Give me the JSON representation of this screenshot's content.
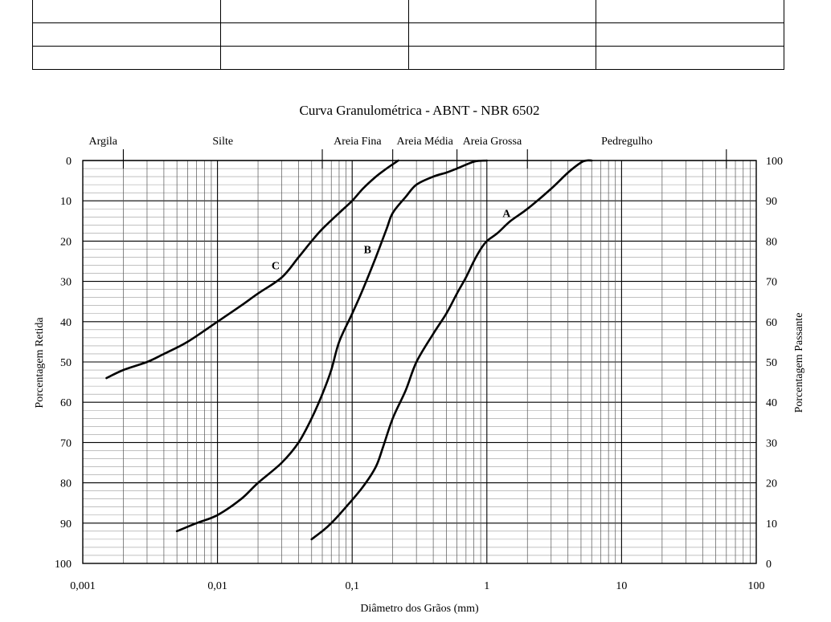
{
  "table": {
    "rows": 3,
    "cols": 4
  },
  "chart_data": {
    "type": "line",
    "title": "Curva Granulométrica - ABNT - NBR 6502",
    "xlabel": "Diâmetro dos Grãos (mm)",
    "ylabel_left": "Porcentagem Retida",
    "ylabel_right": "Porcentagem Passante",
    "x_scale": "log",
    "xlim": [
      0.001,
      100
    ],
    "ylim_left": [
      0,
      100
    ],
    "ylim_left_inverted": true,
    "ylim_right": [
      0,
      100
    ],
    "x_ticks": [
      "0,001",
      "0,01",
      "0,1",
      "1",
      "10",
      "100"
    ],
    "y_ticks_left": [
      "0",
      "10",
      "20",
      "30",
      "40",
      "50",
      "60",
      "70",
      "80",
      "90",
      "100"
    ],
    "y_ticks_right": [
      "100",
      "90",
      "80",
      "70",
      "60",
      "50",
      "40",
      "30",
      "20",
      "10",
      "0"
    ],
    "grid": true,
    "zones": [
      {
        "label": "Argila",
        "from": 0.001,
        "to": 0.002
      },
      {
        "label": "Silte",
        "from": 0.002,
        "to": 0.06
      },
      {
        "label": "Areia Fina",
        "from": 0.06,
        "to": 0.2
      },
      {
        "label": "Areia Média",
        "from": 0.2,
        "to": 0.6
      },
      {
        "label": "Areia Grossa",
        "from": 0.6,
        "to": 2
      },
      {
        "label": "Pedregulho",
        "from": 2,
        "to": 60
      }
    ],
    "zone_boundaries": [
      0.002,
      0.06,
      0.2,
      0.6,
      2,
      60
    ],
    "series": [
      {
        "name": "A",
        "label_at": {
          "x": 1.4,
          "y": 14
        },
        "points": [
          [
            0.05,
            94
          ],
          [
            0.06,
            92
          ],
          [
            0.07,
            90
          ],
          [
            0.09,
            86
          ],
          [
            0.12,
            81
          ],
          [
            0.15,
            76
          ],
          [
            0.17,
            71
          ],
          [
            0.2,
            64
          ],
          [
            0.25,
            57
          ],
          [
            0.3,
            50
          ],
          [
            0.4,
            43
          ],
          [
            0.5,
            38
          ],
          [
            0.6,
            33
          ],
          [
            0.7,
            29
          ],
          [
            0.8,
            25
          ],
          [
            0.9,
            22
          ],
          [
            1.0,
            20
          ],
          [
            1.2,
            18
          ],
          [
            1.5,
            15
          ],
          [
            2,
            12
          ],
          [
            3,
            7
          ],
          [
            4,
            3
          ],
          [
            5,
            0.5
          ],
          [
            5.5,
            0
          ],
          [
            6,
            0
          ]
        ]
      },
      {
        "name": "B",
        "label_at": {
          "x": 0.13,
          "y": 23
        },
        "points": [
          [
            0.005,
            92
          ],
          [
            0.007,
            90
          ],
          [
            0.01,
            88
          ],
          [
            0.015,
            84
          ],
          [
            0.02,
            80
          ],
          [
            0.03,
            75
          ],
          [
            0.04,
            70
          ],
          [
            0.05,
            64
          ],
          [
            0.06,
            58
          ],
          [
            0.07,
            52
          ],
          [
            0.08,
            45
          ],
          [
            0.1,
            38
          ],
          [
            0.12,
            32
          ],
          [
            0.15,
            24
          ],
          [
            0.18,
            17
          ],
          [
            0.2,
            13
          ],
          [
            0.25,
            9
          ],
          [
            0.3,
            6
          ],
          [
            0.4,
            4
          ],
          [
            0.5,
            3
          ],
          [
            0.6,
            2
          ],
          [
            0.8,
            0.3
          ],
          [
            1.0,
            0
          ]
        ]
      },
      {
        "name": "C",
        "label_at": {
          "x": 0.027,
          "y": 27
        },
        "points": [
          [
            0.0015,
            54
          ],
          [
            0.002,
            52
          ],
          [
            0.003,
            50
          ],
          [
            0.004,
            48
          ],
          [
            0.006,
            45
          ],
          [
            0.01,
            40
          ],
          [
            0.015,
            36
          ],
          [
            0.02,
            33
          ],
          [
            0.03,
            29
          ],
          [
            0.04,
            24
          ],
          [
            0.05,
            20
          ],
          [
            0.06,
            17
          ],
          [
            0.08,
            13
          ],
          [
            0.1,
            10
          ],
          [
            0.12,
            7
          ],
          [
            0.15,
            4
          ],
          [
            0.18,
            2
          ],
          [
            0.22,
            0
          ]
        ]
      }
    ]
  }
}
